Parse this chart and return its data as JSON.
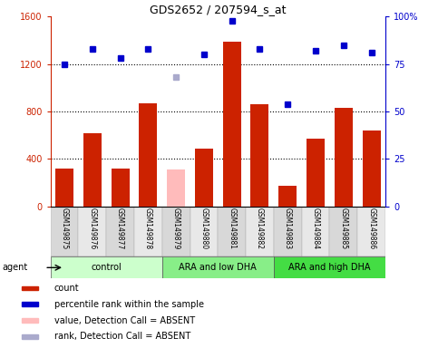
{
  "title": "GDS2652 / 207594_s_at",
  "samples": [
    "GSM149875",
    "GSM149876",
    "GSM149877",
    "GSM149878",
    "GSM149879",
    "GSM149880",
    "GSM149881",
    "GSM149882",
    "GSM149883",
    "GSM149884",
    "GSM149885",
    "GSM149886"
  ],
  "counts": [
    320,
    620,
    320,
    870,
    null,
    490,
    1390,
    860,
    175,
    570,
    830,
    640
  ],
  "absent_count": [
    null,
    null,
    null,
    null,
    310,
    null,
    null,
    null,
    null,
    null,
    null,
    null
  ],
  "percentile_ranks": [
    75,
    83,
    78,
    83,
    null,
    80,
    98,
    83,
    54,
    82,
    85,
    81
  ],
  "absent_rank": [
    null,
    null,
    null,
    null,
    68,
    null,
    null,
    null,
    null,
    null,
    null,
    null
  ],
  "ylim_left": [
    0,
    1600
  ],
  "ylim_right": [
    0,
    100
  ],
  "yticks_left": [
    0,
    400,
    800,
    1200,
    1600
  ],
  "yticks_right": [
    0,
    25,
    50,
    75,
    100
  ],
  "yticklabels_right": [
    "0",
    "25",
    "50",
    "75",
    "100%"
  ],
  "bar_color": "#cc2200",
  "absent_bar_color": "#ffbbbb",
  "dot_color": "#0000cc",
  "absent_dot_color": "#aaaacc",
  "groups": [
    {
      "label": "control",
      "start": 0,
      "end": 3,
      "color": "#ccffcc"
    },
    {
      "label": "ARA and low DHA",
      "start": 4,
      "end": 7,
      "color": "#88ee88"
    },
    {
      "label": "ARA and high DHA",
      "start": 8,
      "end": 11,
      "color": "#44dd44"
    }
  ],
  "legend_items": [
    {
      "label": "count",
      "color": "#cc2200"
    },
    {
      "label": "percentile rank within the sample",
      "color": "#0000cc"
    },
    {
      "label": "value, Detection Call = ABSENT",
      "color": "#ffbbbb"
    },
    {
      "label": "rank, Detection Call = ABSENT",
      "color": "#aaaacc"
    }
  ],
  "agent_label": "agent",
  "left_axis_color": "#cc2200",
  "right_axis_color": "#0000cc",
  "fig_bg": "#ffffff",
  "plot_bg": "#ffffff",
  "label_bg_odd": "#d8d8d8",
  "label_bg_even": "#e8e8e8"
}
